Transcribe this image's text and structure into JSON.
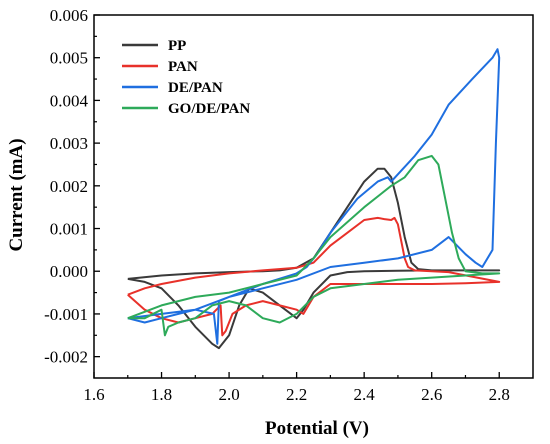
{
  "chart_data": {
    "type": "line",
    "xlabel": "Potential (V)",
    "ylabel": "Current (mA)",
    "xlim": [
      1.6,
      2.9
    ],
    "ylim": [
      -0.0025,
      0.006
    ],
    "x_ticks": [
      "1.6",
      "1.8",
      "2.0",
      "2.2",
      "2.4",
      "2.6",
      "2.8"
    ],
    "y_ticks": [
      "-0.002",
      "-0.001",
      "0.000",
      "0.001",
      "0.002",
      "0.003",
      "0.004",
      "0.005",
      "0.006"
    ],
    "grid": false,
    "legend_position": "top-left",
    "series": [
      {
        "name": "PP",
        "color": "#3a3a3a",
        "points": [
          [
            1.7,
            -0.00018
          ],
          [
            1.8,
            -0.0001
          ],
          [
            1.9,
            -5e-05
          ],
          [
            2.0,
            -2e-05
          ],
          [
            2.1,
            0.0
          ],
          [
            2.15,
            2e-05
          ],
          [
            2.2,
            8e-05
          ],
          [
            2.25,
            0.0003
          ],
          [
            2.3,
            0.0009
          ],
          [
            2.35,
            0.0015
          ],
          [
            2.4,
            0.0021
          ],
          [
            2.44,
            0.0024
          ],
          [
            2.46,
            0.0024
          ],
          [
            2.48,
            0.0022
          ],
          [
            2.5,
            0.0016
          ],
          [
            2.52,
            0.0008
          ],
          [
            2.54,
            0.0002
          ],
          [
            2.56,
            5e-05
          ],
          [
            2.6,
            2e-05
          ],
          [
            2.7,
            2e-05
          ],
          [
            2.8,
            2e-05
          ],
          [
            2.7,
            2e-05
          ],
          [
            2.6,
            2e-05
          ],
          [
            2.5,
            1e-05
          ],
          [
            2.4,
            0.0
          ],
          [
            2.35,
            -2e-05
          ],
          [
            2.3,
            -0.0001
          ],
          [
            2.25,
            -0.0005
          ],
          [
            2.22,
            -0.0009
          ],
          [
            2.2,
            -0.0011
          ],
          [
            2.15,
            -0.0008
          ],
          [
            2.1,
            -0.0005
          ],
          [
            2.06,
            -0.0004
          ],
          [
            2.03,
            -0.0008
          ],
          [
            2.0,
            -0.0015
          ],
          [
            1.97,
            -0.0018
          ],
          [
            1.95,
            -0.0017
          ],
          [
            1.9,
            -0.0013
          ],
          [
            1.85,
            -0.0008
          ],
          [
            1.8,
            -0.0004
          ],
          [
            1.75,
            -0.00025
          ],
          [
            1.7,
            -0.00018
          ]
        ]
      },
      {
        "name": "PAN",
        "color": "#e8312a",
        "points": [
          [
            1.7,
            -0.00055
          ],
          [
            1.75,
            -0.0004
          ],
          [
            1.8,
            -0.0003
          ],
          [
            1.9,
            -0.00015
          ],
          [
            2.0,
            -5e-05
          ],
          [
            2.1,
            2e-05
          ],
          [
            2.2,
            8e-05
          ],
          [
            2.25,
            0.0002
          ],
          [
            2.3,
            0.0006
          ],
          [
            2.35,
            0.0009
          ],
          [
            2.4,
            0.0012
          ],
          [
            2.44,
            0.00125
          ],
          [
            2.46,
            0.00122
          ],
          [
            2.48,
            0.0012
          ],
          [
            2.49,
            0.00125
          ],
          [
            2.5,
            0.0011
          ],
          [
            2.51,
            0.0007
          ],
          [
            2.52,
            0.0003
          ],
          [
            2.53,
            0.0001
          ],
          [
            2.55,
            2e-05
          ],
          [
            2.65,
            -2e-05
          ],
          [
            2.8,
            -0.00025
          ],
          [
            2.7,
            -0.00028
          ],
          [
            2.6,
            -0.0003
          ],
          [
            2.5,
            -0.0003
          ],
          [
            2.4,
            -0.0003
          ],
          [
            2.3,
            -0.0003
          ],
          [
            2.25,
            -0.0006
          ],
          [
            2.22,
            -0.001
          ],
          [
            2.2,
            -0.0009
          ],
          [
            2.15,
            -0.0008
          ],
          [
            2.1,
            -0.0007
          ],
          [
            2.05,
            -0.0008
          ],
          [
            2.01,
            -0.001
          ],
          [
            1.99,
            -0.0014
          ],
          [
            1.98,
            -0.0015
          ],
          [
            1.975,
            -0.0008
          ],
          [
            1.95,
            -0.001
          ],
          [
            1.9,
            -0.0011
          ],
          [
            1.85,
            -0.0012
          ],
          [
            1.8,
            -0.0011
          ],
          [
            1.75,
            -0.0009
          ],
          [
            1.7,
            -0.00055
          ]
        ]
      },
      {
        "name": "DE/PAN",
        "color": "#1f6fe0",
        "points": [
          [
            1.7,
            -0.0011
          ],
          [
            1.8,
            -0.001
          ],
          [
            1.9,
            -0.0009
          ],
          [
            2.0,
            -0.0006
          ],
          [
            2.1,
            -0.0004
          ],
          [
            2.2,
            -0.0002
          ],
          [
            2.3,
            0.0001
          ],
          [
            2.4,
            0.0002
          ],
          [
            2.5,
            0.0003
          ],
          [
            2.6,
            0.0005
          ],
          [
            2.65,
            0.0008
          ],
          [
            2.7,
            0.0004
          ],
          [
            2.73,
            0.0002
          ],
          [
            2.75,
            0.0001
          ],
          [
            2.78,
            0.0005
          ],
          [
            2.79,
            0.003
          ],
          [
            2.8,
            0.005
          ],
          [
            2.795,
            0.0052
          ],
          [
            2.78,
            0.005
          ],
          [
            2.72,
            0.0045
          ],
          [
            2.65,
            0.0039
          ],
          [
            2.6,
            0.0032
          ],
          [
            2.55,
            0.0027
          ],
          [
            2.48,
            0.0021
          ],
          [
            2.47,
            0.0022
          ],
          [
            2.44,
            0.0021
          ],
          [
            2.38,
            0.0017
          ],
          [
            2.3,
            0.0009
          ],
          [
            2.26,
            0.0004
          ],
          [
            2.23,
            0.0001
          ],
          [
            2.2,
            -5e-05
          ],
          [
            2.1,
            -0.0003
          ],
          [
            2.0,
            -0.0006
          ],
          [
            1.97,
            -0.0007
          ],
          [
            1.965,
            -0.0017
          ],
          [
            1.955,
            -0.001
          ],
          [
            1.9,
            -0.0009
          ],
          [
            1.85,
            -0.001
          ],
          [
            1.8,
            -0.0011
          ],
          [
            1.75,
            -0.0012
          ],
          [
            1.7,
            -0.0011
          ]
        ]
      },
      {
        "name": "GO/DE/PAN",
        "color": "#2eaa5a",
        "points": [
          [
            1.7,
            -0.0011
          ],
          [
            1.8,
            -0.0008
          ],
          [
            1.9,
            -0.0006
          ],
          [
            2.0,
            -0.0005
          ],
          [
            2.1,
            -0.0003
          ],
          [
            2.2,
            -0.0001
          ],
          [
            2.25,
            0.0003
          ],
          [
            2.3,
            0.0008
          ],
          [
            2.4,
            0.0015
          ],
          [
            2.48,
            0.002
          ],
          [
            2.52,
            0.0022
          ],
          [
            2.56,
            0.0026
          ],
          [
            2.6,
            0.0027
          ],
          [
            2.62,
            0.0025
          ],
          [
            2.64,
            0.0017
          ],
          [
            2.66,
            0.0009
          ],
          [
            2.68,
            0.0003
          ],
          [
            2.7,
            0.0
          ],
          [
            2.75,
            -5e-05
          ],
          [
            2.8,
            -5e-05
          ],
          [
            2.7,
            -0.0001
          ],
          [
            2.6,
            -0.00015
          ],
          [
            2.5,
            -0.0002
          ],
          [
            2.4,
            -0.0003
          ],
          [
            2.3,
            -0.0004
          ],
          [
            2.25,
            -0.0006
          ],
          [
            2.2,
            -0.001
          ],
          [
            2.15,
            -0.0012
          ],
          [
            2.1,
            -0.0011
          ],
          [
            2.05,
            -0.0008
          ],
          [
            2.0,
            -0.0007
          ],
          [
            1.95,
            -0.0008
          ],
          [
            1.9,
            -0.0011
          ],
          [
            1.85,
            -0.0012
          ],
          [
            1.82,
            -0.0013
          ],
          [
            1.81,
            -0.0015
          ],
          [
            1.8,
            -0.0009
          ],
          [
            1.75,
            -0.0011
          ],
          [
            1.7,
            -0.0011
          ]
        ]
      }
    ]
  }
}
